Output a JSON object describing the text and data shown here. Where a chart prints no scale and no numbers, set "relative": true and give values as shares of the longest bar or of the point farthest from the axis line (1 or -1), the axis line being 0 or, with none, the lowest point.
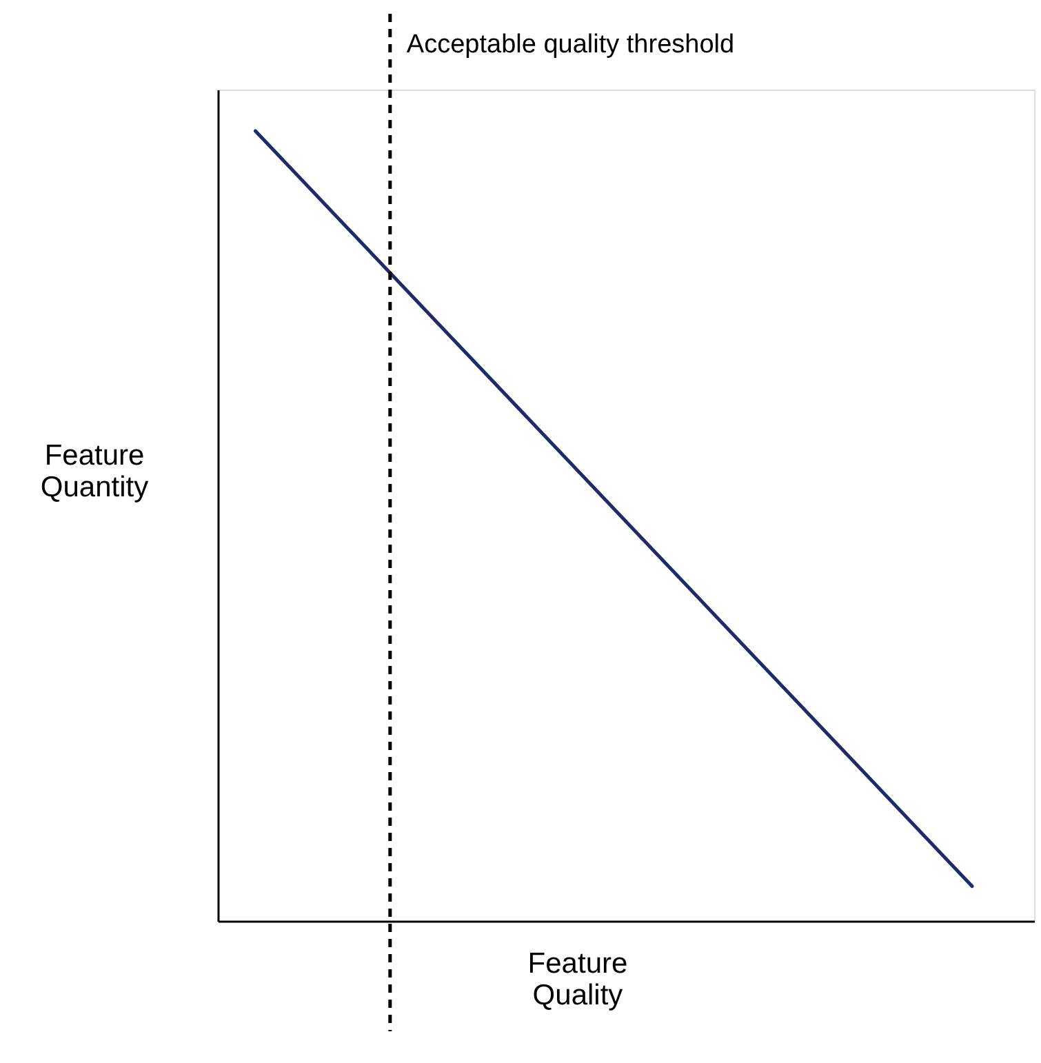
{
  "chart_data": {
    "type": "line",
    "relative": true,
    "xlabel": "Feature Quality",
    "ylabel": "Feature Quantity",
    "categories": [
      null,
      null
    ],
    "tick_labels": false,
    "grid": false,
    "marker": "none",
    "line_style": "solid",
    "series": [
      {
        "color": "#1f2a6b",
        "values": [
          1,
          0.044
        ]
      }
    ],
    "ref_lines": [
      {
        "axis": "x",
        "label": "Acceptable quality threshold",
        "color": "#000000",
        "line_style": "dashed"
      }
    ]
  }
}
